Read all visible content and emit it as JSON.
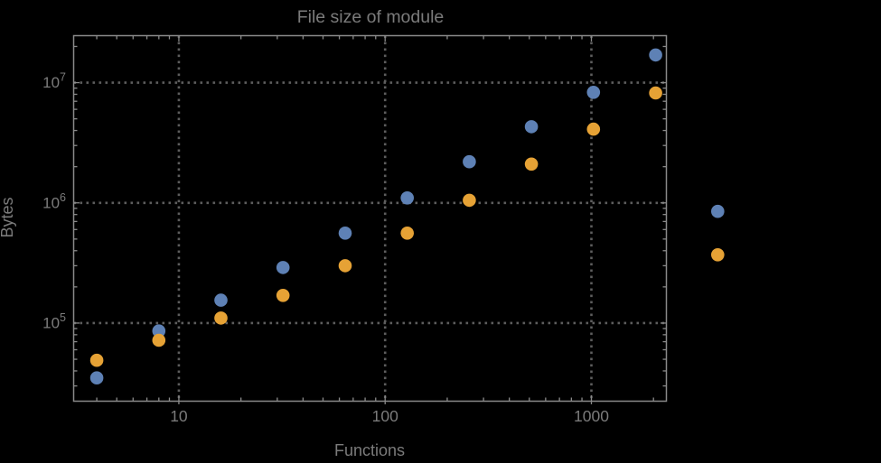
{
  "chart_data": {
    "type": "scatter",
    "title": "File size of module",
    "xlabel": "Functions",
    "ylabel": "Bytes",
    "xscale": "log",
    "yscale": "log",
    "xlim": [
      3.09,
      2310
    ],
    "ylim": [
      22400,
      24600000
    ],
    "grid": "dotted gridlines at decade ticks, framed axes with inward log minor ticks",
    "legend": "none",
    "x": [
      4,
      8,
      16,
      32,
      64,
      128,
      256,
      512,
      1024,
      2048,
      4096
    ],
    "series": [
      {
        "name": "series-1-blue",
        "color": "#5E81B5",
        "values": [
          35000,
          86000,
          155000,
          290000,
          560000,
          1100000,
          2200000,
          4300000,
          8300000,
          17000000,
          850000
        ]
      },
      {
        "name": "series-2-orange",
        "color": "#E6A235",
        "values": [
          49000,
          72000,
          110000,
          170000,
          300000,
          560000,
          1050000,
          2100000,
          4100000,
          8200000,
          370000
        ]
      }
    ],
    "x_ticks": [
      10,
      100,
      1000
    ],
    "x_tick_labels": [
      "10",
      "100",
      "1000"
    ],
    "y_ticks": [
      100000,
      1000000,
      10000000
    ],
    "y_tick_labels": [
      [
        "10",
        "5"
      ],
      [
        "10",
        "6"
      ],
      [
        "10",
        "7"
      ]
    ],
    "points_outside_frame": "the two points at x=4096 are drawn to the right of the plot frame"
  },
  "colors": {
    "background": "#000000",
    "frame": "#8a8a8a",
    "grid": "#5d5d5d",
    "text": "#7b7b7b"
  }
}
